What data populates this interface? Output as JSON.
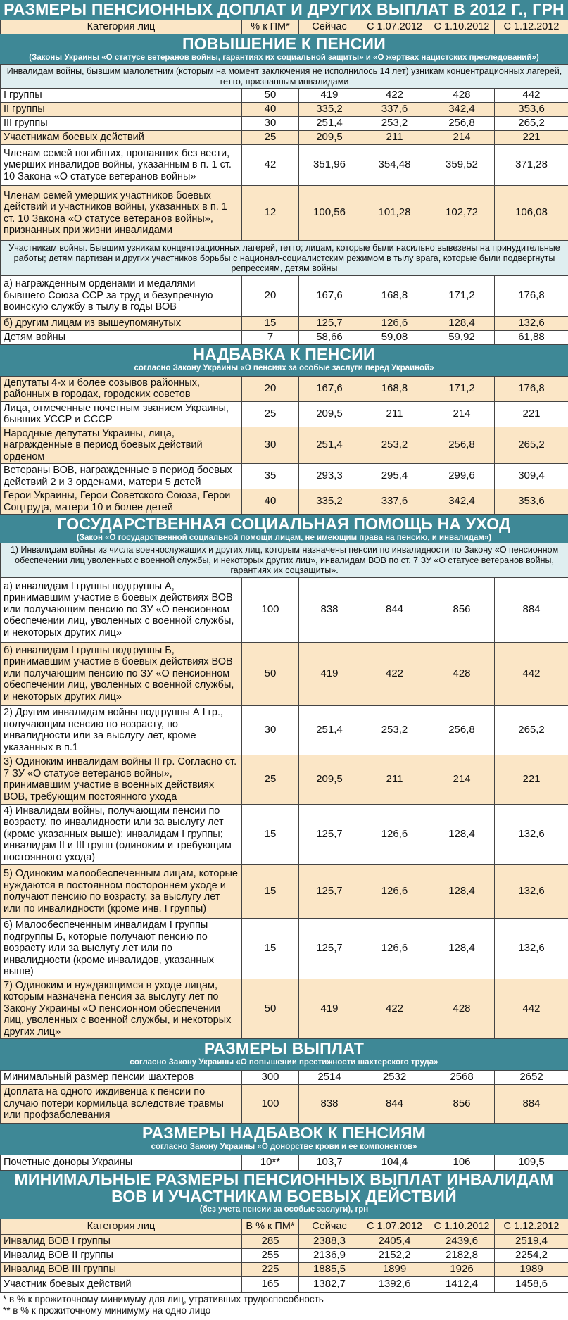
{
  "title": "РАЗМЕРЫ ПЕНСИОННЫХ ДОПЛАТ И ДРУГИХ ВЫПЛАТ В 2012 Г., ГРН",
  "header": {
    "category": "Категория лиц",
    "pct": "% к ПМ*",
    "now": "Сейчас",
    "d1": "С 1.07.2012",
    "d2": "С 1.10.2012",
    "d3": "С 1.12.2012"
  },
  "s1": {
    "title": "ПОВЫШЕНИЕ К ПЕНСИИ",
    "subtitle": "(Законы Украины «О статусе ветеранов войны, гарантиях их социальной защиты» и «О жертвах нацистских преследований»)",
    "note1": "Инвалидам войны, бывшим малолетним (которым на момент заключения не исполнилось 14 лет) узникам концентрационных лагерей, гетто, признанным инвалидами",
    "rows_a": [
      {
        "label": "I группы",
        "pct": "50",
        "now": "419",
        "d1": "422",
        "d2": "428",
        "d3": "442"
      },
      {
        "label": "II группы",
        "pct": "40",
        "now": "335,2",
        "d1": "337,6",
        "d2": "342,4",
        "d3": "353,6"
      },
      {
        "label": "III группы",
        "pct": "30",
        "now": "251,4",
        "d1": "253,2",
        "d2": "256,8",
        "d3": "265,2"
      },
      {
        "label": "Участникам боевых действий",
        "pct": "25",
        "now": "209,5",
        "d1": "211",
        "d2": "214",
        "d3": "221"
      },
      {
        "label": "Членам семей погибших, пропавших без вести, умерших инвалидов войны, указанным в п. 1 ст. 10 Закона «О статусе ветеранов войны»",
        "pct": "42",
        "now": "351,96",
        "d1": "354,48",
        "d2": "359,52",
        "d3": "371,28"
      },
      {
        "label": "Членам семей умерших участников боевых действий и участников войны, указанных в п. 1 ст. 10 Закона «О статусе ветеранов войны», признанных при жизни инвалидами",
        "pct": "12",
        "now": "100,56",
        "d1": "101,28",
        "d2": "102,72",
        "d3": "106,08"
      }
    ],
    "note2": "Участникам войны. Бывшим узникам концентрационных лагерей, гетто; лицам, которые были насильно вывезены на принудительные работы; детям партизан и других участников борьбы с национал-социалистским режимом в тылу врага, которые были подвергнуты репрессиям, детям войны",
    "rows_b": [
      {
        "label": "а) награжденным орденами и медалями бывшего Союза ССР за труд и безупречную воинскую службу в тылу в годы ВОВ",
        "pct": "20",
        "now": "167,6",
        "d1": "168,8",
        "d2": "171,2",
        "d3": "176,8"
      },
      {
        "label": "б) другим лицам из вышеупомянутых",
        "pct": "15",
        "now": "125,7",
        "d1": "126,6",
        "d2": "128,4",
        "d3": "132,6"
      },
      {
        "label": "Детям войны",
        "pct": "7",
        "now": "58,66",
        "d1": "59,08",
        "d2": "59,92",
        "d3": "61,88"
      }
    ]
  },
  "s2": {
    "title": "НАДБАВКА К ПЕНСИИ",
    "subtitle": "согласно Закону Украины «О пенсиях за особые заслуги перед Украиной»",
    "rows": [
      {
        "label": "Депутаты 4-х и более созывов районных, районных в городах, городских советов",
        "pct": "20",
        "now": "167,6",
        "d1": "168,8",
        "d2": "171,2",
        "d3": "176,8"
      },
      {
        "label": "Лица, отмеченные почетным званием Украины, бывших УССР и СССР",
        "pct": "25",
        "now": "209,5",
        "d1": "211",
        "d2": "214",
        "d3": "221"
      },
      {
        "label": "Народные депутаты Украины, лица, награжденные в период боевых действий орденом",
        "pct": "30",
        "now": "251,4",
        "d1": "253,2",
        "d2": "256,8",
        "d3": "265,2"
      },
      {
        "label": "Ветераны ВОВ, награжденные в период боевых действий 2 и 3 орденами, матери 5 детей",
        "pct": "35",
        "now": "293,3",
        "d1": "295,4",
        "d2": "299,6",
        "d3": "309,4"
      },
      {
        "label": "Герои Украины, Герои Советского Союза, Герои Соцтруда, матери 10 и более детей",
        "pct": "40",
        "now": "335,2",
        "d1": "337,6",
        "d2": "342,4",
        "d3": "353,6"
      }
    ]
  },
  "s3": {
    "title": "ГОСУДАРСТВЕННАЯ СОЦИАЛЬНАЯ ПОМОЩЬ НА УХОД",
    "subtitle": "(Закон «О государственной социальной помощи лицам, не имеющим права на пенсию, и инвалидам»)",
    "note": "1) Инвалидам войны из числа военнослужащих и других лиц, которым назначены пенсии по инвалидности по Закону «О пенсионном обеспечении лиц уволенных с военной службы, и некоторых других лиц», инвалидам ВОВ по ст. 7 ЗУ «О статусе ветеранов войны, гарантиях их соцзащиты».",
    "rows": [
      {
        "label": "а) инвалидам I группы подгруппы А, принимавшим участие в боевых действиях ВОВ или получающим пенсию по ЗУ «О пенсионном обеспечении лиц, уволенных с военной службы, и некоторых других лиц»",
        "pct": "100",
        "now": "838",
        "d1": "844",
        "d2": "856",
        "d3": "884"
      },
      {
        "label": "б) инвалидам I группы подгруппы Б, принимавшим участие в боевых действиях ВОВ или получающим пенсию по ЗУ «О пенсионном обеспечении лиц, уволенных с военной службы, и некоторых других лиц»",
        "pct": "50",
        "now": "419",
        "d1": "422",
        "d2": "428",
        "d3": "442"
      },
      {
        "label": "2) Другим инвалидам войны подгруппы А I гр., получающим пенсию по возрасту, по инвалидности или за выслугу лет, кроме указанных в п.1",
        "pct": "30",
        "now": "251,4",
        "d1": "253,2",
        "d2": "256,8",
        "d3": "265,2"
      },
      {
        "label": "3) Одиноким инвалидам войны II гр. Согласно ст. 7 ЗУ «О статусе ветеранов войны», принимавшим участие в военных действиях ВОВ, требующим постоянного ухода",
        "pct": "25",
        "now": "209,5",
        "d1": "211",
        "d2": "214",
        "d3": "221"
      },
      {
        "label": "4) Инвалидам войны, получающим пенсии по возрасту, по инвалидности или за выслугу лет (кроме указанных выше): инвалидам I группы; инвалидам II и III групп (одиноким и требующим постоянного ухода)",
        "pct": "15",
        "now": "125,7",
        "d1": "126,6",
        "d2": "128,4",
        "d3": "132,6"
      },
      {
        "label": "5) Одиноким малообеспеченным лицам, которые нуждаются в постоянном постороннем уходе и получают пенсию по возрасту, за выслугу лет или по инвалидности (кроме инв. I группы)",
        "pct": "15",
        "now": "125,7",
        "d1": "126,6",
        "d2": "128,4",
        "d3": "132,6"
      },
      {
        "label": "6) Малообеспеченным инвалидам I группы подгруппы Б, которые получают пенсию по возрасту или за выслугу лет или по инвалидности (кроме инвалидов, указанных выше)",
        "pct": "15",
        "now": "125,7",
        "d1": "126,6",
        "d2": "128,4",
        "d3": "132,6"
      },
      {
        "label": "7) Одиноким и нуждающимся в уходе лицам, которым назначена пенсия за выслугу лет по Закону Украины «О пенсионном обеспечении лиц, уволенных с военной службы, и некоторых других лиц»",
        "pct": "50",
        "now": "419",
        "d1": "422",
        "d2": "428",
        "d3": "442"
      }
    ]
  },
  "s4": {
    "title": "РАЗМЕРЫ ВЫПЛАТ",
    "subtitle": "согласно Закону Украины «О повышении престижности шахтерского труда»",
    "rows": [
      {
        "label": "Минимальный размер пенсии шахтеров",
        "pct": "300",
        "now": "2514",
        "d1": "2532",
        "d2": "2568",
        "d3": "2652"
      },
      {
        "label": "Доплата на одного иждивенца к пенсии по случаю потери кормильца вследствие травмы или профзаболевания",
        "pct": "100",
        "now": "838",
        "d1": "844",
        "d2": "856",
        "d3": "884"
      }
    ]
  },
  "s5": {
    "title": "РАЗМЕРЫ НАДБАВОК К ПЕНСИЯМ",
    "subtitle": "согласно Закону Украины «О донорстве крови и ее компонентов»",
    "rows": [
      {
        "label": "Почетные доноры Украины",
        "pct": "10**",
        "now": "103,7",
        "d1": "104,4",
        "d2": "106",
        "d3": "109,5"
      }
    ]
  },
  "s6": {
    "title": "МИНИМАЛЬНЫЕ РАЗМЕРЫ ПЕНСИОННЫХ ВЫПЛАТ ИНВАЛИДАМ ВОВ И УЧАСТНИКАМ БОЕВЫХ ДЕЙСТВИЙ",
    "subtitle": "(без учета пенсии за особые заслуги), грн",
    "header": {
      "category": "Категория лиц",
      "pct": "В % к ПМ*",
      "now": "Сейчас",
      "d1": "С 1.07.2012",
      "d2": "С 1.10.2012",
      "d3": "С 1.12.2012"
    },
    "rows": [
      {
        "label": "Инвалид ВОВ I группы",
        "pct": "285",
        "now": "2388,3",
        "d1": "2405,4",
        "d2": "2439,6",
        "d3": "2519,4"
      },
      {
        "label": "Инвалид ВОВ II группы",
        "pct": "255",
        "now": "2136,9",
        "d1": "2152,2",
        "d2": "2182,8",
        "d3": "2254,2"
      },
      {
        "label": "Инвалид ВОВ III группы",
        "pct": "225",
        "now": "1885,5",
        "d1": "1899",
        "d2": "1926",
        "d3": "1989"
      },
      {
        "label": "Участник боевых действий",
        "pct": "165",
        "now": "1382,7",
        "d1": "1392,6",
        "d2": "1412,4",
        "d3": "1458,6"
      }
    ]
  },
  "footnotes": {
    "f1": "* в % к прожиточному минимуму для лиц, утративших трудоспособность",
    "f2": "** в % к прожиточному минимуму на одно лицо"
  },
  "colors": {
    "teal": "#3e8896",
    "beige": "#fbe6c6",
    "note": "#dfeef0"
  }
}
